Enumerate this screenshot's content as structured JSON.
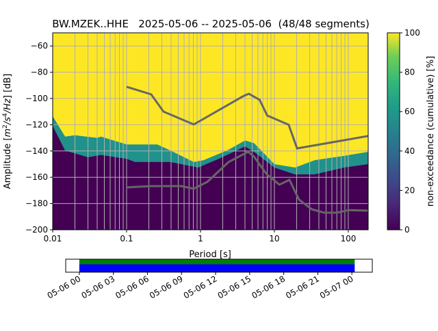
{
  "chart_data": {
    "type": "heatmap",
    "title": "BW.MZEK..HHE   2025-05-06 -- 2025-05-06  (48/48 segments)",
    "xlabel": "Period [s]",
    "ylabel": "Amplitude [m²/s⁴/Hz] [dB]",
    "xscale": "log",
    "xlim": [
      0.01,
      186
    ],
    "ylim": [
      -200,
      -50
    ],
    "xticks": [
      {
        "v": 0.01,
        "label": "0.01"
      },
      {
        "v": 0.1,
        "label": "0.1"
      },
      {
        "v": 1,
        "label": "1"
      },
      {
        "v": 10,
        "label": "10"
      },
      {
        "v": 100,
        "label": "100"
      }
    ],
    "yticks": [
      {
        "v": -60,
        "label": "−60"
      },
      {
        "v": -80,
        "label": "−80"
      },
      {
        "v": -100,
        "label": "−100"
      },
      {
        "v": -120,
        "label": "−120"
      },
      {
        "v": -140,
        "label": "−140"
      },
      {
        "v": -160,
        "label": "−160"
      },
      {
        "v": -180,
        "label": "−180"
      },
      {
        "v": -200,
        "label": "−200"
      }
    ],
    "grid": true,
    "colorbar": {
      "label": "non-exceedance (cumulative) [%]",
      "range": [
        0,
        100
      ],
      "ticks": [
        {
          "v": 0,
          "label": "0"
        },
        {
          "v": 20,
          "label": "20"
        },
        {
          "v": 40,
          "label": "40"
        },
        {
          "v": 60,
          "label": "60"
        },
        {
          "v": 80,
          "label": "80"
        },
        {
          "v": 100,
          "label": "100"
        }
      ]
    },
    "upper_noise_boundary": {
      "period": [
        0.01,
        0.0147,
        0.02,
        0.04,
        0.045,
        0.1,
        0.26,
        0.39,
        0.81,
        1.1,
        2.4,
        4.0,
        5.3,
        10,
        19,
        35,
        88,
        186
      ],
      "db": [
        -113.5,
        -129,
        -128,
        -130,
        -129,
        -135,
        -135,
        -139.6,
        -148.4,
        -147,
        -139,
        -132,
        -134,
        -150,
        -152.6,
        -147,
        -143.7,
        -140.6
      ]
    },
    "lower_noise_boundary": {
      "period": [
        0.01,
        0.0147,
        0.03,
        0.045,
        0.1,
        0.13,
        0.39,
        0.93,
        1.8,
        4.0,
        5.3,
        10,
        19,
        35,
        88,
        186
      ],
      "db": [
        -121,
        -139.6,
        -144.8,
        -143,
        -146,
        -148.4,
        -148.4,
        -152.6,
        -145.8,
        -136.5,
        -140.6,
        -152.6,
        -157.8,
        -157.8,
        -152.6,
        -150
      ]
    },
    "series": [
      {
        "name": "NHNM",
        "period": [
          0.1,
          0.215,
          0.316,
          0.81,
          3.75,
          4.5,
          6.3,
          8.0,
          15.6,
          20.3,
          186
        ],
        "db": [
          -91.1,
          -96.9,
          -110,
          -119.8,
          -98.4,
          -96.4,
          -101,
          -113,
          -120,
          -138,
          -128.6
        ]
      },
      {
        "name": "NLNM",
        "period": [
          0.1,
          0.215,
          0.55,
          0.81,
          1.24,
          2.4,
          4.4,
          5.3,
          7.9,
          11.7,
          16,
          21.5,
          32,
          47,
          70,
          102,
          186
        ],
        "db": [
          -167.7,
          -166.7,
          -166.7,
          -168.7,
          -163.5,
          -148.4,
          -140.6,
          -144.3,
          -157.8,
          -165.6,
          -162,
          -177,
          -184.4,
          -187,
          -187,
          -185,
          -185.4
        ]
      }
    ],
    "timeline": {
      "tick_labels": [
        "05-06 00",
        "05-06 03",
        "05-06 06",
        "05-06 09",
        "05-06 12",
        "05-06 15",
        "05-06 18",
        "05-06 21",
        "05-07 00"
      ],
      "coverage_hours": [
        0,
        24.25
      ],
      "range_hours": [
        -1.2,
        25.8
      ],
      "colors": {
        "top": "#008000",
        "bottom": "#0000ff"
      }
    }
  }
}
